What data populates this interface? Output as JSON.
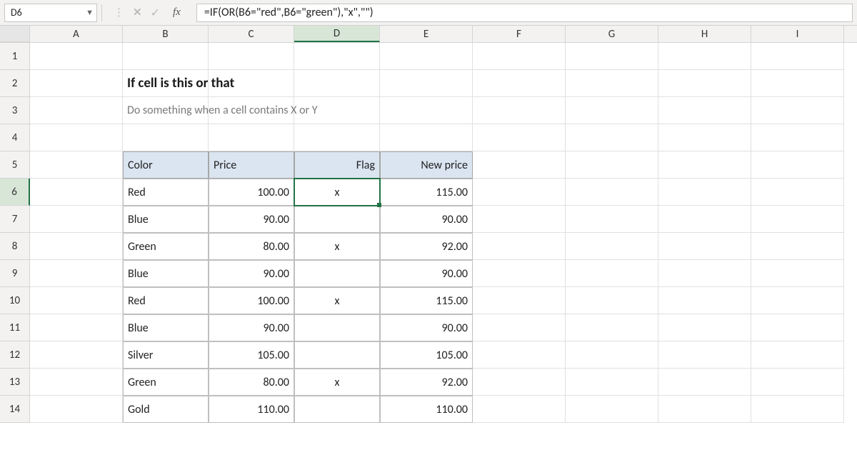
{
  "nameBox": "D6",
  "formula": "=IF(OR(B6=\"red\",B6=\"green\"),\"x\",\"\")",
  "fxLabel": "fx",
  "columns": [
    "A",
    "B",
    "C",
    "D",
    "E",
    "F",
    "G",
    "H",
    "I"
  ],
  "activeCol": "D",
  "rows": [
    "1",
    "2",
    "3",
    "4",
    "5",
    "6",
    "7",
    "8",
    "9",
    "10",
    "11",
    "12",
    "13",
    "14"
  ],
  "activeRow": "6",
  "title": "If cell is this or that",
  "subtitle": "Do something when a cell contains X or Y",
  "table": {
    "headers": {
      "color": "Color",
      "price": "Price",
      "flag": "Flag",
      "newprice": "New price"
    },
    "rows": [
      {
        "color": "Red",
        "price": "100.00",
        "flag": "x",
        "newprice": "115.00"
      },
      {
        "color": "Blue",
        "price": "90.00",
        "flag": "",
        "newprice": "90.00"
      },
      {
        "color": "Green",
        "price": "80.00",
        "flag": "x",
        "newprice": "92.00"
      },
      {
        "color": "Blue",
        "price": "90.00",
        "flag": "",
        "newprice": "90.00"
      },
      {
        "color": "Red",
        "price": "100.00",
        "flag": "x",
        "newprice": "115.00"
      },
      {
        "color": "Blue",
        "price": "90.00",
        "flag": "",
        "newprice": "90.00"
      },
      {
        "color": "Silver",
        "price": "105.00",
        "flag": "",
        "newprice": "105.00"
      },
      {
        "color": "Green",
        "price": "80.00",
        "flag": "x",
        "newprice": "92.00"
      },
      {
        "color": "Gold",
        "price": "110.00",
        "flag": "",
        "newprice": "110.00"
      }
    ]
  },
  "colors": {
    "selection": "#217346",
    "headerFill": "#dbe5f1",
    "gridBg": "#f3f2f1"
  }
}
